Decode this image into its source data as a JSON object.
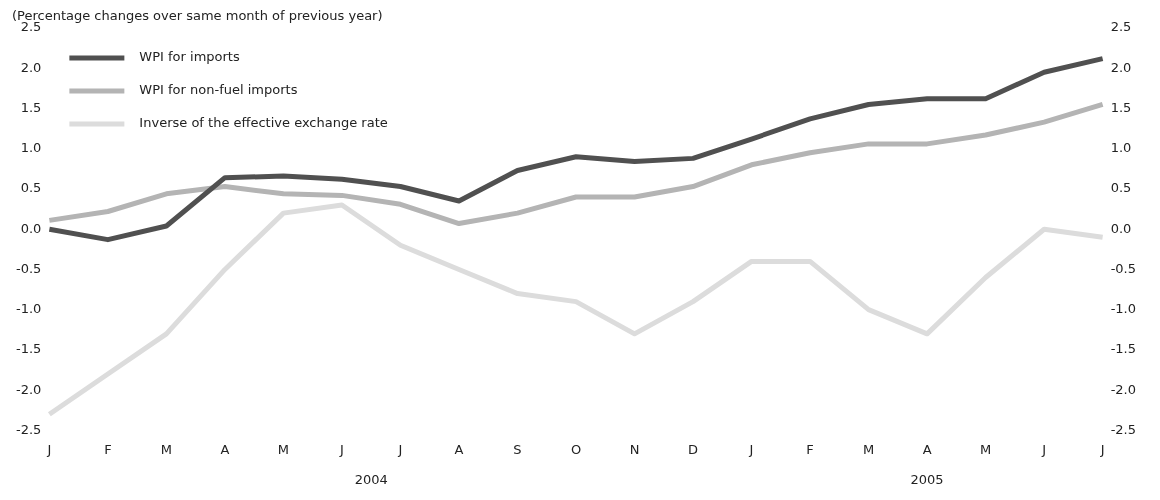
{
  "chart_data": {
    "type": "line",
    "subtitle": "(Percentage changes over same month of previous year)",
    "categories": [
      "J",
      "F",
      "M",
      "A",
      "M",
      "J",
      "J",
      "A",
      "S",
      "O",
      "N",
      "D",
      "J",
      "F",
      "M",
      "A",
      "M",
      "J",
      "J"
    ],
    "series": [
      {
        "name": "WPI for imports",
        "color": "#505050",
        "values": [
          0.0,
          -0.13,
          0.04,
          0.64,
          0.66,
          0.62,
          0.53,
          0.35,
          0.73,
          0.9,
          0.84,
          0.88,
          1.12,
          1.37,
          1.55,
          1.62,
          1.62,
          1.95,
          2.12
        ]
      },
      {
        "name": "WPI for non-fuel imports",
        "color": "#b4b4b4",
        "values": [
          0.11,
          0.22,
          0.44,
          0.53,
          0.44,
          0.42,
          0.31,
          0.07,
          0.2,
          0.4,
          0.4,
          0.53,
          0.8,
          0.95,
          1.06,
          1.06,
          1.17,
          1.33,
          1.55
        ]
      },
      {
        "name": "Inverse of the effective exchange rate",
        "color": "#dcdcdc",
        "values": [
          -2.3,
          -1.8,
          -1.3,
          -0.5,
          0.2,
          0.3,
          -0.2,
          -0.5,
          -0.8,
          -0.9,
          -1.3,
          -0.9,
          -0.4,
          -0.4,
          -1.0,
          -1.3,
          -0.6,
          0.0,
          -0.1
        ]
      }
    ],
    "ylim": [
      -2.5,
      2.5
    ],
    "yticks": [
      {
        "value": -2.5,
        "label": "-2.5"
      },
      {
        "value": -2,
        "label": "-2.0"
      },
      {
        "value": -1.5,
        "label": "-1.5"
      },
      {
        "value": -1,
        "label": "-1.0"
      },
      {
        "value": -0.5,
        "label": "-0.5"
      },
      {
        "value": 0,
        "label": "0.0"
      },
      {
        "value": 0.5,
        "label": "0.5"
      },
      {
        "value": 1,
        "label": "1.0"
      },
      {
        "value": 1.5,
        "label": "1.5"
      },
      {
        "value": 2,
        "label": "2.0"
      },
      {
        "value": 2.5,
        "label": "2.5"
      }
    ],
    "y2lim": [
      -2.5,
      2.5
    ],
    "y2ticks": [
      {
        "value": -2.5,
        "label": "-2.5"
      },
      {
        "value": -2,
        "label": "-2.0"
      },
      {
        "value": -1.5,
        "label": "-1.5"
      },
      {
        "value": -1,
        "label": "-1.0"
      },
      {
        "value": -0.5,
        "label": "-0.5"
      },
      {
        "value": 0,
        "label": "0.0"
      },
      {
        "value": 0.5,
        "label": "0.5"
      },
      {
        "value": 1,
        "label": "1.0"
      },
      {
        "value": 1.5,
        "label": "1.5"
      },
      {
        "value": 2,
        "label": "2.0"
      },
      {
        "value": 2.5,
        "label": "2.5"
      }
    ],
    "annotations": [
      "2004",
      "2005"
    ],
    "grid": false,
    "legend": "top left",
    "marker": "none",
    "line_style": "solid"
  }
}
